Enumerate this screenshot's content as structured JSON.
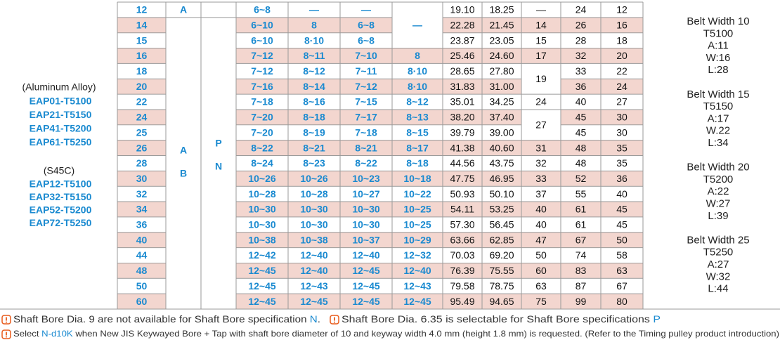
{
  "left_column": {
    "aluminum_label": "(Aluminum Alloy)",
    "aluminum_parts": [
      "EAP01-T5100",
      "EAP21-T5150",
      "EAP41-T5200",
      "EAP61-T5250"
    ],
    "steel_label": "(S45C)",
    "steel_parts": [
      "EAP12-T5100",
      "EAP32-T5150",
      "EAP52-T5200",
      "EAP72-T5250"
    ]
  },
  "table": {
    "material_codes": [
      "A",
      "B"
    ],
    "bore_types": [
      "P",
      "N"
    ],
    "rows": [
      {
        "teeth": "12",
        "material": "A",
        "bores": [
          "6~8",
          "—",
          "—",
          "—"
        ],
        "d1": "19.10",
        "d2": "18.25",
        "c": "—",
        "e": "24",
        "f": "12"
      },
      {
        "teeth": "14",
        "material": null,
        "bores": [
          "6~10",
          "8",
          "6~8",
          null
        ],
        "d1": "22.28",
        "d2": "21.45",
        "c": "14",
        "e": "26",
        "f": "16"
      },
      {
        "teeth": "15",
        "material": null,
        "bores": [
          "6~10",
          "8·10",
          "6~8",
          null
        ],
        "d1": "23.87",
        "d2": "23.05",
        "c": "15",
        "e": "28",
        "f": "18"
      },
      {
        "teeth": "16",
        "material": null,
        "bores": [
          "7~12",
          "8~11",
          "7~10",
          "8"
        ],
        "d1": "25.46",
        "d2": "24.60",
        "c": "17",
        "e": "32",
        "f": "20"
      },
      {
        "teeth": "18",
        "material": null,
        "bores": [
          "7~12",
          "8~12",
          "7~11",
          "8·10"
        ],
        "d1": "28.65",
        "d2": "27.80",
        "c": "19",
        "e": "33",
        "f": "22"
      },
      {
        "teeth": "20",
        "material": null,
        "bores": [
          "7~16",
          "8~14",
          "7~12",
          "8·10"
        ],
        "d1": "31.83",
        "d2": "31.00",
        "c": null,
        "e": "36",
        "f": "24"
      },
      {
        "teeth": "22",
        "material": null,
        "bores": [
          "7~18",
          "8~16",
          "7~15",
          "8~12"
        ],
        "d1": "35.01",
        "d2": "34.25",
        "c": "24",
        "e": "40",
        "f": "27"
      },
      {
        "teeth": "24",
        "material": null,
        "bores": [
          "7~20",
          "8~18",
          "7~17",
          "8~13"
        ],
        "d1": "38.20",
        "d2": "37.40",
        "c": "27",
        "e": "45",
        "f": "30"
      },
      {
        "teeth": "25",
        "material": null,
        "bores": [
          "7~20",
          "8~19",
          "7~18",
          "8~15"
        ],
        "d1": "39.79",
        "d2": "39.00",
        "c": null,
        "e": "45",
        "f": "30"
      },
      {
        "teeth": "26",
        "material": null,
        "bores": [
          "8~22",
          "8~21",
          "8~21",
          "8~17"
        ],
        "d1": "41.38",
        "d2": "40.60",
        "c": "31",
        "e": "48",
        "f": "35"
      },
      {
        "teeth": "28",
        "material": null,
        "bores": [
          "8~24",
          "8~23",
          "8~22",
          "8~18"
        ],
        "d1": "44.56",
        "d2": "43.75",
        "c": "32",
        "e": "48",
        "f": "35"
      },
      {
        "teeth": "30",
        "material": null,
        "bores": [
          "10~26",
          "10~26",
          "10~23",
          "10~18"
        ],
        "d1": "47.75",
        "d2": "46.95",
        "c": "33",
        "e": "52",
        "f": "36"
      },
      {
        "teeth": "32",
        "material": null,
        "bores": [
          "10~28",
          "10~28",
          "10~27",
          "10~22"
        ],
        "d1": "50.93",
        "d2": "50.10",
        "c": "37",
        "e": "55",
        "f": "40"
      },
      {
        "teeth": "34",
        "material": null,
        "bores": [
          "10~30",
          "10~30",
          "10~30",
          "10~25"
        ],
        "d1": "54.11",
        "d2": "53.25",
        "c": "40",
        "e": "61",
        "f": "45"
      },
      {
        "teeth": "36",
        "material": null,
        "bores": [
          "10~30",
          "10~30",
          "10~30",
          "10~25"
        ],
        "d1": "57.30",
        "d2": "56.45",
        "c": "40",
        "e": "61",
        "f": "45"
      },
      {
        "teeth": "40",
        "material": null,
        "bores": [
          "10~38",
          "10~38",
          "10~37",
          "10~29"
        ],
        "d1": "63.66",
        "d2": "62.85",
        "c": "47",
        "e": "67",
        "f": "50"
      },
      {
        "teeth": "44",
        "material": null,
        "bores": [
          "12~42",
          "12~40",
          "12~40",
          "12~32"
        ],
        "d1": "70.03",
        "d2": "69.20",
        "c": "50",
        "e": "74",
        "f": "58"
      },
      {
        "teeth": "48",
        "material": null,
        "bores": [
          "12~45",
          "12~40",
          "12~45",
          "12~40"
        ],
        "d1": "76.39",
        "d2": "75.55",
        "c": "60",
        "e": "83",
        "f": "63"
      },
      {
        "teeth": "50",
        "material": null,
        "bores": [
          "12~45",
          "12~43",
          "12~45",
          "12~43"
        ],
        "d1": "79.58",
        "d2": "78.75",
        "c": "63",
        "e": "87",
        "f": "67"
      },
      {
        "teeth": "60",
        "material": null,
        "bores": [
          "12~45",
          "12~45",
          "12~45",
          "12~45"
        ],
        "d1": "95.49",
        "d2": "94.65",
        "c": "75",
        "e": "99",
        "f": "80"
      }
    ]
  },
  "belt_groups": [
    {
      "title": "Belt Width 10",
      "lines": [
        "T5100",
        "A:11",
        "W:16",
        "L:28"
      ]
    },
    {
      "title": "Belt Width 15",
      "lines": [
        "T5150",
        "A:17",
        "W.22",
        "L:34"
      ]
    },
    {
      "title": "Belt Width 20",
      "lines": [
        "T5200",
        "A:22",
        "W:27",
        "L:39"
      ]
    },
    {
      "title": "Belt Width 25",
      "lines": [
        "T5250",
        "A:27",
        "W:32",
        "L:44"
      ]
    }
  ],
  "notes": [
    {
      "items": [
        {
          "segments": [
            {
              "text": "Shaft Bore Dia. 9 are not available for Shaft Bore specification "
            },
            {
              "text": "N",
              "color": "#1a8ad0"
            },
            {
              "text": "."
            }
          ]
        },
        {
          "segments": [
            {
              "text": "Shaft Bore Dia. 6.35 is selectable for Shaft Bore specifications "
            },
            {
              "text": "P",
              "color": "#1a8ad0"
            }
          ]
        }
      ]
    },
    {
      "items": [
        {
          "segments": [
            {
              "text": "Select "
            },
            {
              "text": "N-d10K",
              "color": "#1a8ad0"
            },
            {
              "text": " when New JIS Keywayed Bore + Tap with shaft bore diameter of 10 and keyway width 4.0 mm (height 1.8 mm) is requested. (Refer to the Timing pulley product introduction)"
            }
          ]
        }
      ]
    }
  ]
}
